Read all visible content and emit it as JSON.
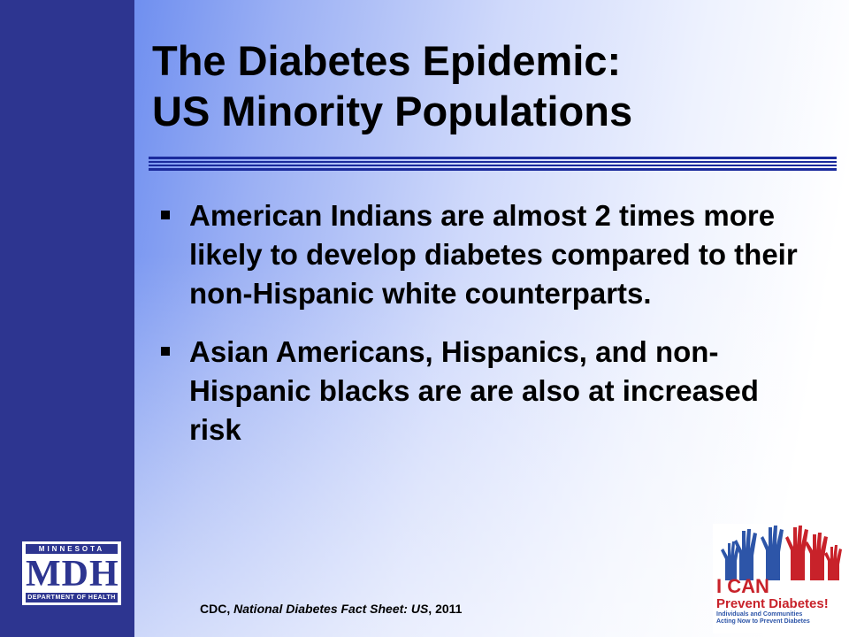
{
  "slide": {
    "title_line1": "The Diabetes Epidemic:",
    "title_line2": "US Minority Populations",
    "bullets": [
      "American Indians are almost 2 times more likely to develop diabetes compared to their non-Hispanic white counterparts.",
      "Asian Americans, Hispanics, and non-Hispanic blacks are are also at increased risk"
    ],
    "citation_source": "CDC, ",
    "citation_title": "National Diabetes Fact Sheet: US",
    "citation_year": ", 2011"
  },
  "mdh_logo": {
    "top": "MINNESOTA",
    "main": "MDH",
    "bottom": "DEPARTMENT OF HEALTH"
  },
  "icp_logo": {
    "line1": "I CAN",
    "line2": "Prevent Diabetes!",
    "sub1": "Individuals and Communities",
    "sub2": "Acting Now to Prevent Diabetes",
    "colors": {
      "red": "#c8222a",
      "blue": "#2d55a8"
    }
  },
  "theme": {
    "sidebar": "#2d3590",
    "divider": "#1a2a9c"
  }
}
